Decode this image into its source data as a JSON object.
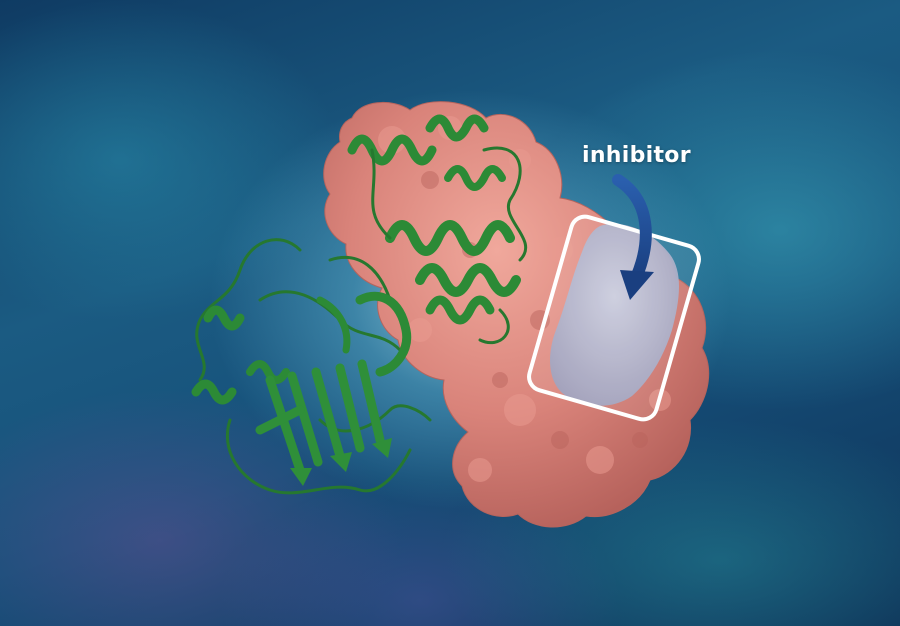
{
  "annotation": {
    "label": "inhibitor"
  },
  "colors": {
    "background": "#16507a",
    "surface_protein": "#d9837a",
    "ribbon_protein": "#2c8a36",
    "binding_site": "#a9a9c6",
    "arrow": "#1f4f97",
    "highlight_box": "#ffffff"
  }
}
